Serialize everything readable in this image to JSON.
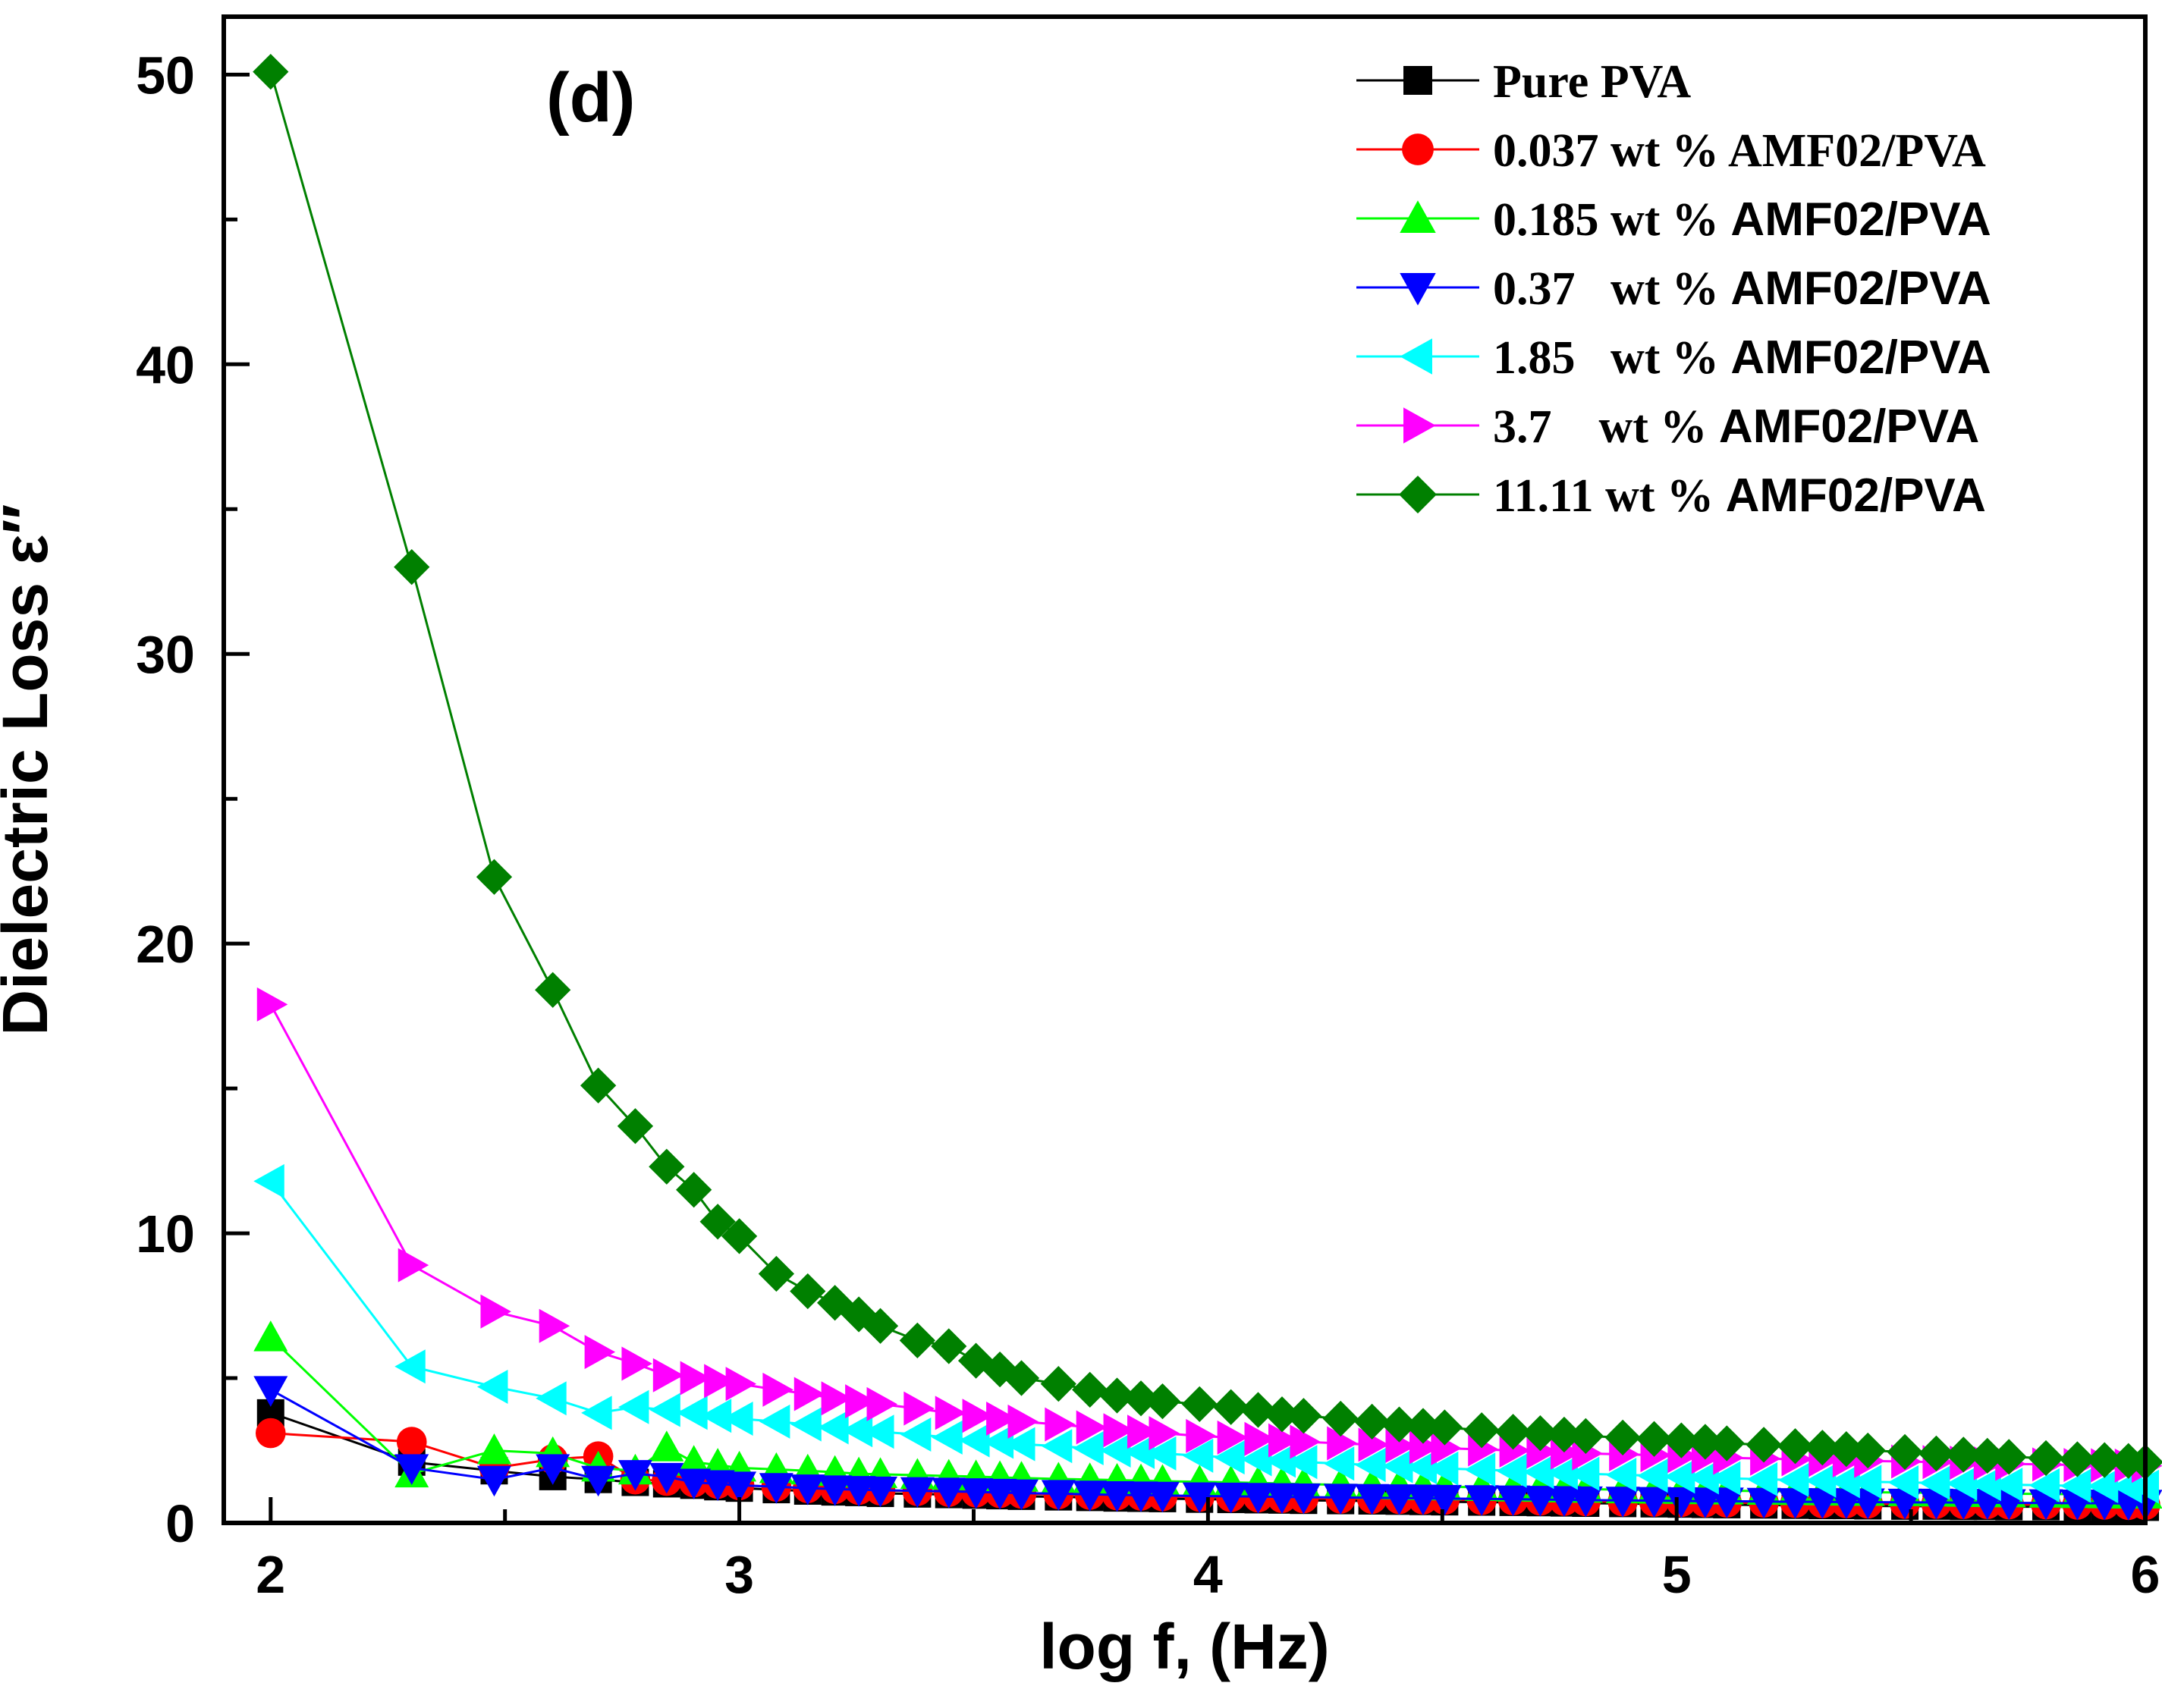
{
  "chart_data": {
    "type": "line",
    "title": "",
    "panel_label": "(d)",
    "xlabel": "log f, (Hz)",
    "ylabel": "Dielectric Loss ε″",
    "xlim": [
      1.9,
      6.0
    ],
    "ylim": [
      0,
      52
    ],
    "x_ticks": [
      2,
      3,
      4,
      5,
      6
    ],
    "y_ticks": [
      0,
      10,
      20,
      30,
      40,
      50
    ],
    "grid": false,
    "legend_position": "top-right",
    "x": [
      2.0,
      2.301,
      2.477,
      2.602,
      2.699,
      2.778,
      2.845,
      2.903,
      2.954,
      3.0,
      3.079,
      3.146,
      3.204,
      3.255,
      3.301,
      3.38,
      3.447,
      3.505,
      3.556,
      3.602,
      3.681,
      3.748,
      3.806,
      3.857,
      3.903,
      3.982,
      4.049,
      4.107,
      4.158,
      4.204,
      4.283,
      4.35,
      4.408,
      4.459,
      4.505,
      4.584,
      4.651,
      4.709,
      4.76,
      4.806,
      4.885,
      4.952,
      5.01,
      5.061,
      5.107,
      5.186,
      5.253,
      5.311,
      5.362,
      5.408,
      5.487,
      5.554,
      5.612,
      5.663,
      5.709,
      5.788,
      5.855,
      5.913,
      5.964,
      6.0
    ],
    "series": [
      {
        "name": "Pure PVA",
        "legend_label": "Pure PVA",
        "legend_font": "serif",
        "color": "#000000",
        "marker": "square",
        "values": [
          3.8,
          2.1,
          1.8,
          1.6,
          1.5,
          1.4,
          1.35,
          1.3,
          1.25,
          1.2,
          1.15,
          1.1,
          1.07,
          1.05,
          1.02,
          1.0,
          0.98,
          0.96,
          0.94,
          0.92,
          0.9,
          0.88,
          0.86,
          0.85,
          0.84,
          0.82,
          0.81,
          0.8,
          0.79,
          0.78,
          0.77,
          0.76,
          0.75,
          0.74,
          0.73,
          0.72,
          0.71,
          0.7,
          0.69,
          0.68,
          0.67,
          0.66,
          0.65,
          0.64,
          0.63,
          0.62,
          0.61,
          0.6,
          0.6,
          0.59,
          0.58,
          0.58,
          0.57,
          0.57,
          0.56,
          0.56,
          0.55,
          0.55,
          0.54,
          0.54
        ]
      },
      {
        "name": "0.037 wt % AMF02/PVA",
        "legend_label": "0.037 wt % AMF02/PVA",
        "legend_font": "serif",
        "color": "#ff0000",
        "marker": "circle",
        "values": [
          3.1,
          2.8,
          1.9,
          2.2,
          2.3,
          1.5,
          1.45,
          1.4,
          1.35,
          1.3,
          1.25,
          1.2,
          1.17,
          1.14,
          1.12,
          1.1,
          1.07,
          1.05,
          1.03,
          1.01,
          0.99,
          0.97,
          0.95,
          0.94,
          0.92,
          0.9,
          0.89,
          0.88,
          0.86,
          0.85,
          0.84,
          0.83,
          0.82,
          0.81,
          0.8,
          0.79,
          0.78,
          0.77,
          0.76,
          0.75,
          0.74,
          0.73,
          0.72,
          0.71,
          0.7,
          0.7,
          0.69,
          0.68,
          0.68,
          0.67,
          0.66,
          0.66,
          0.65,
          0.65,
          0.64,
          0.64,
          0.63,
          0.63,
          0.62,
          0.62
        ]
      },
      {
        "name": "0.185 wt % AMF02/PVA",
        "legend_label": "0.185 wt % AMF02/PVA",
        "legend_font": "mixed",
        "color": "#00ff00",
        "marker": "triangle-up",
        "values": [
          6.4,
          1.7,
          2.5,
          2.4,
          1.9,
          1.8,
          2.6,
          2.1,
          2.0,
          1.9,
          1.85,
          1.8,
          1.75,
          1.7,
          1.68,
          1.65,
          1.62,
          1.6,
          1.57,
          1.55,
          1.52,
          1.5,
          1.48,
          1.46,
          1.44,
          1.42,
          1.4,
          1.38,
          1.36,
          1.34,
          1.32,
          1.3,
          1.28,
          1.26,
          1.25,
          1.23,
          1.21,
          1.2,
          1.18,
          1.17,
          1.15,
          1.14,
          1.13,
          1.12,
          1.11,
          1.1,
          1.09,
          1.08,
          1.07,
          1.06,
          1.05,
          1.04,
          1.03,
          1.02,
          1.01,
          1.0,
          0.99,
          0.98,
          0.97,
          0.97
        ]
      },
      {
        "name": "0.37 wt % AMF02/PVA",
        "legend_label": "0.37   wt % AMF02/PVA",
        "legend_font": "mixed",
        "color": "#0000ff",
        "marker": "triangle-down",
        "values": [
          4.6,
          1.9,
          1.5,
          1.9,
          1.5,
          1.7,
          1.6,
          1.4,
          1.35,
          1.3,
          1.25,
          1.2,
          1.17,
          1.15,
          1.13,
          1.11,
          1.09,
          1.07,
          1.05,
          1.03,
          1.01,
          0.99,
          0.97,
          0.96,
          0.95,
          0.93,
          0.92,
          0.91,
          0.9,
          0.89,
          0.88,
          0.87,
          0.86,
          0.85,
          0.84,
          0.83,
          0.82,
          0.81,
          0.8,
          0.79,
          0.78,
          0.77,
          0.76,
          0.75,
          0.75,
          0.74,
          0.73,
          0.73,
          0.72,
          0.72,
          0.71,
          0.71,
          0.7,
          0.7,
          0.69,
          0.69,
          0.68,
          0.68,
          0.67,
          0.67
        ]
      },
      {
        "name": "1.85 wt % AMF02/PVA",
        "legend_label": "1.85   wt % AMF02/PVA",
        "legend_font": "mixed",
        "color": "#00ffff",
        "marker": "triangle-left",
        "values": [
          11.8,
          5.4,
          4.7,
          4.3,
          3.8,
          4.0,
          3.9,
          3.8,
          3.7,
          3.6,
          3.5,
          3.4,
          3.3,
          3.2,
          3.15,
          3.05,
          2.95,
          2.85,
          2.8,
          2.72,
          2.65,
          2.58,
          2.5,
          2.45,
          2.4,
          2.32,
          2.26,
          2.2,
          2.15,
          2.1,
          2.05,
          2.0,
          1.96,
          1.92,
          1.88,
          1.84,
          1.8,
          1.76,
          1.73,
          1.7,
          1.66,
          1.63,
          1.6,
          1.57,
          1.54,
          1.51,
          1.48,
          1.46,
          1.44,
          1.42,
          1.4,
          1.38,
          1.36,
          1.34,
          1.32,
          1.3,
          1.28,
          1.27,
          1.26,
          1.25
        ]
      },
      {
        "name": "3.7 wt % AMF02/PVA",
        "legend_label": "3.7    wt % AMF02/PVA",
        "legend_font": "mixed",
        "color": "#ff00ff",
        "marker": "triangle-right",
        "values": [
          17.9,
          8.9,
          7.3,
          6.8,
          5.9,
          5.5,
          5.1,
          5.0,
          4.9,
          4.8,
          4.6,
          4.45,
          4.3,
          4.2,
          4.1,
          3.95,
          3.8,
          3.7,
          3.6,
          3.5,
          3.4,
          3.3,
          3.2,
          3.15,
          3.1,
          3.0,
          2.95,
          2.9,
          2.85,
          2.8,
          2.75,
          2.7,
          2.66,
          2.62,
          2.58,
          2.54,
          2.5,
          2.46,
          2.43,
          2.4,
          2.37,
          2.34,
          2.31,
          2.28,
          2.25,
          2.22,
          2.2,
          2.18,
          2.16,
          2.14,
          2.12,
          2.1,
          2.08,
          2.06,
          2.04,
          2.02,
          2.0,
          1.99,
          1.98,
          1.97
        ]
      },
      {
        "name": "11.11 wt % AMF02/PVA",
        "legend_label": "11.11 wt % AMF02/PVA",
        "legend_font": "mixed",
        "color": "#008000",
        "marker": "diamond",
        "values": [
          50.1,
          33.0,
          22.3,
          18.4,
          15.1,
          13.7,
          12.3,
          11.5,
          10.4,
          9.9,
          8.6,
          8.0,
          7.6,
          7.2,
          6.8,
          6.3,
          6.1,
          5.6,
          5.3,
          5.0,
          4.8,
          4.6,
          4.4,
          4.3,
          4.2,
          4.1,
          4.0,
          3.9,
          3.75,
          3.7,
          3.6,
          3.5,
          3.4,
          3.35,
          3.3,
          3.2,
          3.15,
          3.1,
          3.05,
          3.0,
          2.95,
          2.9,
          2.85,
          2.8,
          2.75,
          2.7,
          2.65,
          2.6,
          2.55,
          2.5,
          2.45,
          2.4,
          2.36,
          2.32,
          2.28,
          2.24,
          2.2,
          2.17,
          2.14,
          2.1
        ]
      }
    ]
  }
}
